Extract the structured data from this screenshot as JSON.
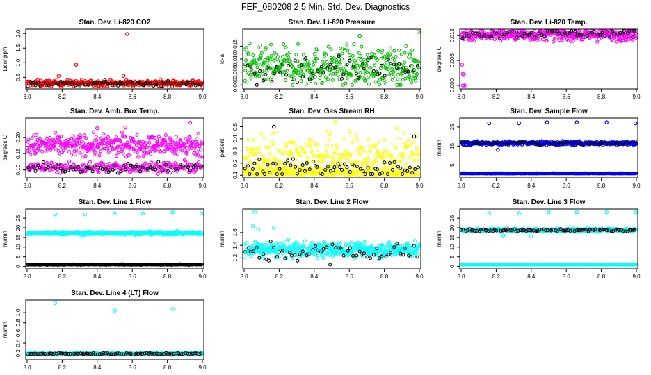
{
  "figure_title": "FEF_080208  2.5 Min. Std. Dev. Diagnostics",
  "chart_data": [
    {
      "id": "co2",
      "type": "scatter",
      "title": "Stan. Dev. Li-820 CO2",
      "ylabel": "Licor ppm",
      "xlim": [
        8.0,
        9.0
      ],
      "ylim": [
        0.15,
        2.1
      ],
      "xticks": [
        "8.0",
        "8.2",
        "8.4",
        "8.6",
        "8.8",
        "9.0"
      ],
      "yticks": [
        {
          "v": 0.5,
          "label": "0.5"
        },
        {
          "v": 1.0,
          "label": "1.0"
        },
        {
          "v": 1.5,
          "label": "1.5"
        },
        {
          "v": 2.0,
          "label": "2.0"
        }
      ],
      "series": [
        {
          "name": "bulk",
          "color": "#ff0000",
          "n": 380,
          "base": 0.3,
          "spread": 0.05,
          "lo": 0.18,
          "hi": 0.45
        },
        {
          "name": "second",
          "color": "#000000",
          "n": 70,
          "base": 0.28,
          "spread": 0.04,
          "lo": 0.18,
          "hi": 0.4
        }
      ],
      "outliers": [
        {
          "x": 0.57,
          "y": 1.98,
          "color": "#ff0000"
        },
        {
          "x": 0.28,
          "y": 0.93,
          "color": "#ff0000"
        },
        {
          "x": 0.18,
          "y": 0.55,
          "color": "#ff0000"
        },
        {
          "x": 0.55,
          "y": 0.55,
          "color": "#ff0000"
        }
      ]
    },
    {
      "id": "pressure",
      "type": "scatter",
      "title": "Stan. Dev. Li-820 Pressure",
      "ylabel": "kPa",
      "xlim": [
        8.0,
        9.0
      ],
      "ylim": [
        -0.001,
        0.021
      ],
      "xticks": [
        "8.0",
        "8.2",
        "8.4",
        "8.6",
        "8.8",
        "9.0"
      ],
      "yticks": [
        {
          "v": 0.0,
          "label": "0.000"
        },
        {
          "v": 0.005,
          "label": "0.005"
        },
        {
          "v": 0.01,
          "label": "0.010"
        },
        {
          "v": 0.015,
          "label": "0.015"
        }
      ],
      "series": [
        {
          "name": "bulk",
          "color": "#00c000",
          "n": 420,
          "base": 0.007,
          "spread": 0.0035,
          "lo": 0.0,
          "hi": 0.017
        },
        {
          "name": "second",
          "color": "#000000",
          "n": 60,
          "base": 0.006,
          "spread": 0.003,
          "lo": 0.0,
          "hi": 0.014
        }
      ],
      "outliers": [
        {
          "x": 0.995,
          "y": 0.0205,
          "color": "#00c000"
        },
        {
          "x": 0.66,
          "y": 0.019,
          "color": "#00c000"
        },
        {
          "x": 0.03,
          "y": 0.016,
          "color": "#00c000"
        }
      ]
    },
    {
      "id": "temp",
      "type": "scatter",
      "title": "Stan. Dev. Li-820 Temp.",
      "ylabel": "degrees C",
      "xlim": [
        8.0,
        9.0
      ],
      "ylim": [
        -0.0005,
        0.0132
      ],
      "xticks": [
        "8.0",
        "8.2",
        "8.4",
        "8.6",
        "8.8",
        "9.0"
      ],
      "yticks": [
        {
          "v": 0.0,
          "label": "0.000"
        },
        {
          "v": 0.006,
          "label": "0.006"
        },
        {
          "v": 0.012,
          "label": "0.012"
        }
      ],
      "series": [
        {
          "name": "bulk",
          "color": "#ff00ff",
          "n": 420,
          "base": 0.0122,
          "spread": 0.0007,
          "lo": 0.0105,
          "hi": 0.0131
        },
        {
          "name": "second",
          "color": "#000000",
          "n": 70,
          "base": 0.0125,
          "spread": 0.0005,
          "lo": 0.011,
          "hi": 0.0131
        }
      ],
      "outliers": [
        {
          "x": 0.005,
          "y": 0.005,
          "color": "#ff00ff"
        },
        {
          "x": 0.01,
          "y": 0.0028,
          "color": "#ff00ff"
        },
        {
          "x": 0.015,
          "y": 0.0025,
          "color": "#ff00ff"
        },
        {
          "x": 0.01,
          "y": 0.0,
          "color": "#ff00ff"
        },
        {
          "x": 0.02,
          "y": 0.0,
          "color": "#ff00ff"
        }
      ]
    },
    {
      "id": "ambbox",
      "type": "scatter",
      "title": "Stan. Dev. Amb. Box Temp.",
      "ylabel": "degrees C",
      "xlim": [
        8.0,
        9.0
      ],
      "ylim": [
        0.08,
        0.255
      ],
      "xticks": [
        "8.0",
        "8.2",
        "8.4",
        "8.6",
        "8.8",
        "9.0"
      ],
      "yticks": [
        {
          "v": 0.1,
          "label": "0.10"
        },
        {
          "v": 0.15,
          "label": "0.15"
        },
        {
          "v": 0.2,
          "label": "0.20"
        }
      ],
      "series": [
        {
          "name": "upper",
          "color": "#ff00ff",
          "n": 420,
          "base": 0.175,
          "spread": 0.016,
          "lo": 0.14,
          "hi": 0.215
        },
        {
          "name": "lower",
          "color": "#ff00ff",
          "n": 260,
          "base": 0.108,
          "spread": 0.008,
          "lo": 0.088,
          "hi": 0.13
        },
        {
          "name": "second",
          "color": "#000000",
          "n": 70,
          "base": 0.106,
          "spread": 0.007,
          "lo": 0.09,
          "hi": 0.125
        }
      ],
      "outliers": [
        {
          "x": 0.93,
          "y": 0.245,
          "color": "#ff00ff"
        },
        {
          "x": 0.56,
          "y": 0.23,
          "color": "#ff00ff"
        },
        {
          "x": 0.4,
          "y": 0.228,
          "color": "#ff00ff"
        }
      ]
    },
    {
      "id": "rh",
      "type": "scatter",
      "title": "Stan. Dev. Gas Stream RH",
      "ylabel": "percent",
      "xlim": [
        8.0,
        9.0
      ],
      "ylim": [
        0.09,
        0.56
      ],
      "xticks": [
        "8.0",
        "8.2",
        "8.4",
        "8.6",
        "8.8",
        "9.0"
      ],
      "yticks": [
        {
          "v": 0.1,
          "label": "0.1"
        },
        {
          "v": 0.2,
          "label": "0.2"
        },
        {
          "v": 0.3,
          "label": "0.3"
        },
        {
          "v": 0.4,
          "label": "0.4"
        },
        {
          "v": 0.5,
          "label": "0.5"
        }
      ],
      "series": [
        {
          "name": "upper",
          "color": "#ffff00",
          "n": 300,
          "base": 0.26,
          "spread": 0.09,
          "lo": 0.15,
          "hi": 0.5
        },
        {
          "name": "lower",
          "color": "#ffff00",
          "n": 300,
          "base": 0.12,
          "spread": 0.02,
          "lo": 0.1,
          "hi": 0.16
        },
        {
          "name": "second",
          "color": "#000000",
          "n": 70,
          "base": 0.15,
          "spread": 0.04,
          "lo": 0.11,
          "hi": 0.3
        }
      ],
      "outliers": [
        {
          "x": 0.52,
          "y": 0.54,
          "color": "#ffff00"
        },
        {
          "x": 0.17,
          "y": 0.5,
          "color": "#000000"
        },
        {
          "x": 0.97,
          "y": 0.42,
          "color": "#000000"
        }
      ]
    },
    {
      "id": "sampleflow",
      "type": "scatter",
      "title": "Stan. Dev. Sample Flow",
      "ylabel": "ml/min",
      "xlim": [
        8.0,
        9.0
      ],
      "ylim": [
        -1,
        29
      ],
      "xticks": [
        "8.0",
        "8.2",
        "8.4",
        "8.6",
        "8.8",
        "9.0"
      ],
      "yticks": [
        {
          "v": 5,
          "label": "5"
        },
        {
          "v": 15,
          "label": "15"
        },
        {
          "v": 25,
          "label": "25"
        }
      ],
      "series": [
        {
          "name": "upper",
          "color": "#0000ff",
          "n": 420,
          "base": 16.5,
          "spread": 0.5,
          "lo": 15.2,
          "hi": 18
        },
        {
          "name": "second",
          "color": "#000000",
          "n": 60,
          "base": 16.5,
          "spread": 0.5,
          "lo": 15.5,
          "hi": 17.5
        },
        {
          "name": "lower",
          "color": "#0000ff",
          "n": 500,
          "base": 0.6,
          "spread": 0.05,
          "lo": 0.4,
          "hi": 0.8
        }
      ],
      "outliers": [
        {
          "x": 0.16,
          "y": 27,
          "color": "#0000ff"
        },
        {
          "x": 0.33,
          "y": 27,
          "color": "#0000ff"
        },
        {
          "x": 0.49,
          "y": 27.5,
          "color": "#0000ff"
        },
        {
          "x": 0.66,
          "y": 27.5,
          "color": "#0000ff"
        },
        {
          "x": 0.83,
          "y": 27.5,
          "color": "#0000ff"
        },
        {
          "x": 0.995,
          "y": 27,
          "color": "#0000ff"
        },
        {
          "x": 0.21,
          "y": 13,
          "color": "#0000ff"
        }
      ]
    },
    {
      "id": "line1",
      "type": "scatter",
      "title": "Stan. Dev. Line 1 Flow",
      "ylabel": "ml/min",
      "xlim": [
        8.0,
        9.0
      ],
      "ylim": [
        -0.5,
        29
      ],
      "xticks": [
        "8.0",
        "8.2",
        "8.4",
        "8.6",
        "8.8",
        "9.0"
      ],
      "yticks": [
        {
          "v": 0,
          "label": "0"
        },
        {
          "v": 5,
          "label": "5"
        },
        {
          "v": 10,
          "label": "10"
        },
        {
          "v": 15,
          "label": "15"
        },
        {
          "v": 20,
          "label": "20"
        },
        {
          "v": 25,
          "label": "25"
        }
      ],
      "series": [
        {
          "name": "upper",
          "color": "#00ffff",
          "n": 500,
          "base": 17.2,
          "spread": 0.4,
          "lo": 15.5,
          "hi": 18.5
        },
        {
          "name": "lower",
          "color": "#000000",
          "n": 250,
          "base": 1.0,
          "spread": 0.1,
          "lo": 0.7,
          "hi": 1.3
        }
      ],
      "outliers": [
        {
          "x": 0.16,
          "y": 27,
          "color": "#00ffff"
        },
        {
          "x": 0.33,
          "y": 27,
          "color": "#00ffff"
        },
        {
          "x": 0.5,
          "y": 27.5,
          "color": "#00ffff"
        },
        {
          "x": 0.66,
          "y": 27.5,
          "color": "#00ffff"
        },
        {
          "x": 0.83,
          "y": 28,
          "color": "#00ffff"
        },
        {
          "x": 0.995,
          "y": 27.5,
          "color": "#00ffff"
        }
      ]
    },
    {
      "id": "line2",
      "type": "scatter",
      "title": "Stan. Dev. Line 2 Flow",
      "ylabel": "ml/min",
      "xlim": [
        8.0,
        9.0
      ],
      "ylim": [
        1.05,
        1.95
      ],
      "xticks": [
        "8.0",
        "8.2",
        "8.4",
        "8.6",
        "8.8",
        "9.0"
      ],
      "yticks": [
        {
          "v": 1.2,
          "label": "1.2"
        },
        {
          "v": 1.4,
          "label": "1.4"
        },
        {
          "v": 1.6,
          "label": "1.6"
        }
      ],
      "series": [
        {
          "name": "bulk",
          "color": "#00ffff",
          "n": 480,
          "base": 1.33,
          "spread": 0.06,
          "lo": 1.12,
          "hi": 1.55
        },
        {
          "name": "second",
          "color": "#000000",
          "n": 60,
          "base": 1.28,
          "spread": 0.08,
          "lo": 1.08,
          "hi": 1.48
        }
      ],
      "outliers": [
        {
          "x": 0.06,
          "y": 1.93,
          "color": "#00ffff"
        },
        {
          "x": 0.17,
          "y": 1.68,
          "color": "#00ffff"
        },
        {
          "x": 0.05,
          "y": 1.7,
          "color": "#00ffff"
        },
        {
          "x": 0.08,
          "y": 1.65,
          "color": "#00ffff"
        }
      ]
    },
    {
      "id": "line3",
      "type": "scatter",
      "title": "Stan. Dev. Line 3 Flow",
      "ylabel": "ml/min",
      "xlim": [
        8.0,
        9.0
      ],
      "ylim": [
        -0.5,
        29
      ],
      "xticks": [
        "8.0",
        "8.2",
        "8.4",
        "8.6",
        "8.8",
        "9.0"
      ],
      "yticks": [
        {
          "v": 0,
          "label": "0"
        },
        {
          "v": 5,
          "label": "5"
        },
        {
          "v": 10,
          "label": "10"
        },
        {
          "v": 15,
          "label": "15"
        },
        {
          "v": 20,
          "label": "20"
        },
        {
          "v": 25,
          "label": "25"
        }
      ],
      "series": [
        {
          "name": "upper",
          "color": "#00ffff",
          "n": 420,
          "base": 18.8,
          "spread": 0.4,
          "lo": 17.5,
          "hi": 19.8
        },
        {
          "name": "second",
          "color": "#000000",
          "n": 90,
          "base": 18.8,
          "spread": 0.3,
          "lo": 17.8,
          "hi": 19.8
        },
        {
          "name": "lower",
          "color": "#00ffff",
          "n": 500,
          "base": 1.0,
          "spread": 0.05,
          "lo": 0.8,
          "hi": 1.2
        }
      ],
      "outliers": [
        {
          "x": 0.16,
          "y": 27.5,
          "color": "#00ffff"
        },
        {
          "x": 0.33,
          "y": 27.5,
          "color": "#00ffff"
        },
        {
          "x": 0.5,
          "y": 28,
          "color": "#00ffff"
        },
        {
          "x": 0.66,
          "y": 28,
          "color": "#00ffff"
        },
        {
          "x": 0.83,
          "y": 28,
          "color": "#00ffff"
        },
        {
          "x": 0.995,
          "y": 28,
          "color": "#00ffff"
        },
        {
          "x": 0.24,
          "y": 16,
          "color": "#00ffff"
        },
        {
          "x": 0.4,
          "y": 15.5,
          "color": "#00ffff"
        }
      ]
    },
    {
      "id": "line4",
      "type": "scatter",
      "title": "Stan. Dev. Line 4 (LT) Flow",
      "ylabel": "ml/min",
      "xlim": [
        8.0,
        9.0
      ],
      "ylim": [
        0.1,
        1.22
      ],
      "xticks": [
        "8.0",
        "8.2",
        "8.4",
        "8.6",
        "8.8",
        "9.0"
      ],
      "yticks": [
        {
          "v": 0.2,
          "label": "0.2"
        },
        {
          "v": 0.4,
          "label": "0.4"
        },
        {
          "v": 0.6,
          "label": "0.6"
        },
        {
          "v": 0.8,
          "label": "0.8"
        },
        {
          "v": 1.0,
          "label": "1.0"
        }
      ],
      "series": [
        {
          "name": "bulk",
          "color": "#00ffff",
          "n": 450,
          "base": 0.19,
          "spread": 0.008,
          "lo": 0.16,
          "hi": 0.22
        },
        {
          "name": "second",
          "color": "#000000",
          "n": 90,
          "base": 0.19,
          "spread": 0.008,
          "lo": 0.17,
          "hi": 0.23
        }
      ],
      "outliers": [
        {
          "x": 0.16,
          "y": 1.19,
          "color": "#00ffff"
        },
        {
          "x": 0.5,
          "y": 1.04,
          "color": "#00ffff"
        },
        {
          "x": 0.83,
          "y": 1.07,
          "color": "#00ffff"
        },
        {
          "x": 0.0,
          "y": 0.22,
          "color": "#00ffff"
        }
      ]
    }
  ]
}
